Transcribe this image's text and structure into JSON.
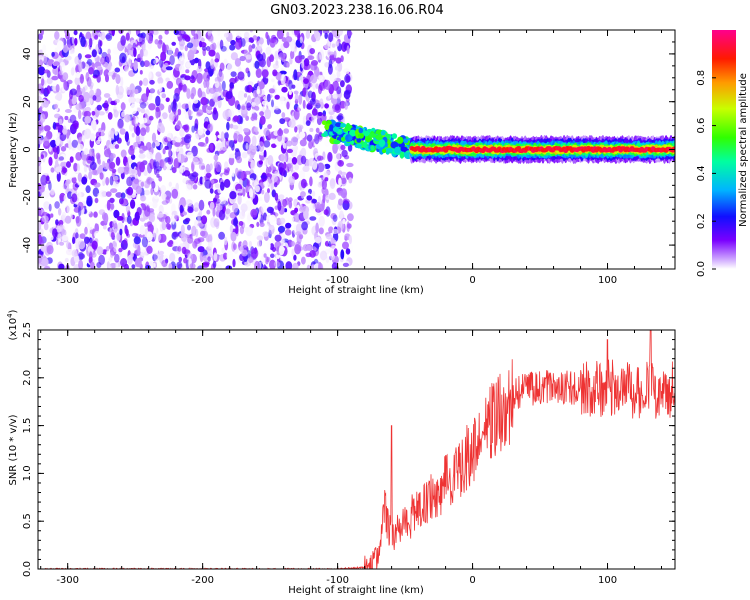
{
  "title": "GN03.2023.238.16.06.R04",
  "chart_data": [
    {
      "type": "heatmap",
      "xlabel": "Height of straight line (km)",
      "ylabel": "Frequency (Hz)",
      "xlim": [
        -322,
        150
      ],
      "ylim": [
        -50,
        50
      ],
      "xticks": [
        -300,
        -200,
        -100,
        0,
        100
      ],
      "yticks": [
        -40,
        -20,
        0,
        20,
        40
      ],
      "colorbar": {
        "label": "Normalized spectral amplitude",
        "range": [
          0.0,
          1.0
        ],
        "ticks": [
          "0.0",
          "0.2",
          "0.4",
          "0.6",
          "0.8"
        ],
        "colormap": [
          "#ffffff",
          "#7a00ff",
          "#0000ff",
          "#00c8ff",
          "#00ff40",
          "#c8ff00",
          "#ff8c00",
          "#ff0000",
          "#ff0090"
        ]
      },
      "regions": [
        {
          "kind": "noise",
          "x_range": [
            -322,
            -90
          ],
          "freq_range": [
            -50,
            50
          ],
          "amplitude": [
            0.0,
            0.2
          ]
        },
        {
          "kind": "transition",
          "x_range": [
            -110,
            -40
          ],
          "freq_range": [
            -5,
            10
          ],
          "amplitude": [
            0.2,
            0.6
          ]
        },
        {
          "kind": "signal",
          "x_range": [
            -40,
            150
          ],
          "freq_center": 0,
          "freq_halfwidth": 3,
          "amplitude": [
            0.6,
            1.0
          ]
        }
      ]
    },
    {
      "type": "line",
      "xlabel": "Height of straight line (km)",
      "ylabel": "SNR (10 * v/v)",
      "y_multiplier": "(x10",
      "y_multiplier_exp": "4",
      "xlim": [
        -322,
        150
      ],
      "ylim": [
        0,
        2.5
      ],
      "xticks": [
        -300,
        -200,
        -100,
        0,
        100
      ],
      "yticks": [
        "0.0",
        "0.5",
        "1.0",
        "1.5",
        "2.0",
        "2.5"
      ],
      "color": "#ee3333",
      "series": [
        {
          "x": [
            -322,
            -290,
            -250,
            -200,
            -150,
            -100,
            -78,
            -72,
            -68,
            -65,
            -60,
            -50,
            -40,
            -30,
            -20,
            -10,
            0,
            10,
            20,
            30,
            35,
            40,
            50,
            60,
            70,
            80,
            90,
            100,
            110,
            120,
            130,
            140,
            150
          ],
          "y": [
            0.0,
            0.0,
            0.0,
            0.0,
            0.0,
            0.0,
            0.02,
            0.1,
            0.3,
            0.6,
            0.35,
            0.5,
            0.6,
            0.75,
            0.9,
            1.05,
            1.25,
            1.45,
            1.65,
            1.8,
            1.85,
            1.88,
            1.9,
            1.9,
            1.9,
            1.88,
            1.88,
            1.9,
            1.88,
            1.85,
            1.9,
            1.85,
            1.88
          ]
        }
      ],
      "annotations": [
        {
          "x": -60,
          "y": 1.5,
          "kind": "spike"
        },
        {
          "x": 100,
          "y": 2.4,
          "kind": "spike"
        },
        {
          "x": 132,
          "y": 2.5,
          "kind": "spike"
        }
      ]
    }
  ]
}
